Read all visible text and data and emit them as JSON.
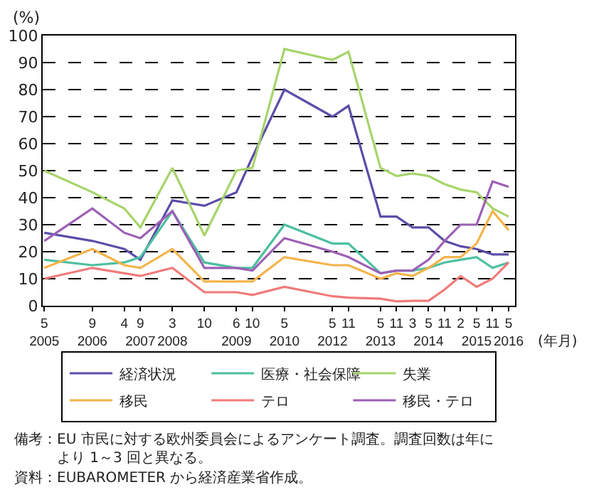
{
  "chart_data": {
    "type": "line",
    "ylabel": "(%)",
    "xlabel": "(年月)",
    "categories": [
      "5\n2005",
      null,
      null,
      "9\n2006",
      null,
      "4",
      "9\n2007",
      null,
      "3\n2008",
      null,
      "10",
      null,
      "6\n2009",
      "10",
      null,
      "5\n2010",
      null,
      null,
      "5\n2012",
      "11",
      null,
      "5\n2013",
      "11",
      "3",
      "5\n2014",
      "11",
      "2",
      "5\n2015",
      "11",
      "5\n2016"
    ],
    "series": [
      {
        "name": "経済状況",
        "color": "#5b4ea8",
        "values": [
          27,
          null,
          null,
          24,
          null,
          21,
          17,
          null,
          39,
          null,
          37,
          null,
          42,
          55,
          null,
          80,
          null,
          null,
          70,
          74,
          null,
          33,
          33,
          29,
          29,
          24,
          22,
          21,
          19,
          19
        ]
      },
      {
        "name": "医療・社会保障",
        "color": "#4dbfa0",
        "values": [
          17,
          null,
          null,
          15,
          null,
          16,
          18,
          null,
          35,
          null,
          16,
          null,
          14,
          14,
          null,
          30,
          null,
          null,
          23,
          23,
          null,
          12,
          13,
          13,
          14,
          16,
          17,
          18,
          14,
          16
        ]
      },
      {
        "name": "失業",
        "color": "#a6d46a",
        "values": [
          50,
          null,
          null,
          42,
          null,
          36,
          29,
          null,
          51,
          null,
          26,
          null,
          50,
          51,
          null,
          95,
          null,
          null,
          91,
          94,
          null,
          51,
          48,
          49,
          48,
          45,
          43,
          42,
          36,
          33
        ]
      },
      {
        "name": "移民",
        "color": "#f5b34a",
        "values": [
          14,
          null,
          null,
          21,
          null,
          15,
          14,
          null,
          21,
          null,
          9,
          null,
          9,
          9,
          null,
          18,
          null,
          null,
          15,
          15,
          null,
          10,
          12,
          11,
          14,
          18,
          18,
          23,
          35,
          28
        ]
      },
      {
        "name": "テロ",
        "color": "#f07a7a",
        "values": [
          10,
          null,
          null,
          14,
          null,
          12,
          11,
          null,
          14,
          null,
          5,
          null,
          5,
          4,
          null,
          7,
          null,
          null,
          3.5,
          3,
          null,
          2.6,
          1.6,
          1.8,
          1.8,
          6,
          11,
          7,
          10,
          16
        ]
      },
      {
        "name": "移民・テロ",
        "color": "#9c5fb5",
        "values": [
          24,
          null,
          null,
          36,
          null,
          27,
          25,
          null,
          35,
          null,
          14,
          null,
          14,
          13,
          null,
          25,
          null,
          null,
          20,
          18,
          null,
          12,
          13,
          13,
          17,
          24,
          30,
          30,
          46,
          44
        ]
      }
    ],
    "ylim": [
      0,
      100
    ],
    "yticks": [
      0,
      10,
      20,
      30,
      40,
      50,
      60,
      70,
      80,
      90,
      100
    ],
    "grid": "y",
    "legend": "bottom",
    "marker": "none",
    "line_style": "solid",
    "annotations": [
      "備考：EU 市民に対する欧州委員会によるアンケート調査。調査回数は年により 1～3 回と異なる。",
      "資料：EUBAROMETER から経済産業省作成。"
    ]
  }
}
